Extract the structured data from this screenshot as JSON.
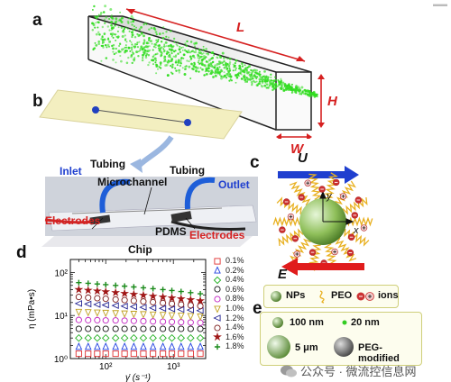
{
  "corner_mark": "▬▬",
  "panel_a": {
    "label": "a",
    "dim_L": "L",
    "dim_H": "H",
    "dim_W": "W"
  },
  "panel_b": {
    "label": "b",
    "tubing_left": "Tubing",
    "tubing_right": "Tubing",
    "inlet": "Inlet",
    "outlet": "Outlet",
    "microchannel": "Microchannel",
    "electrodes_left": "Electrodes",
    "electrodes_right": "Electrodes",
    "pdms": "PDMS",
    "chip": "Chip"
  },
  "panel_c": {
    "label": "c",
    "U": "U",
    "E": "E",
    "x": "x",
    "y": "y",
    "legend": {
      "nps": "NPs",
      "peo": "PEO",
      "ions": "ions"
    }
  },
  "panel_e": {
    "label": "e",
    "size_100": "100 nm",
    "size_20": "20 nm",
    "size_5": "5 μm",
    "peg": "PEG-modified"
  },
  "panel_d": {
    "label": "d"
  },
  "chart_data": {
    "type": "scatter",
    "title": "",
    "xlabel": "γ̇ (s⁻¹)",
    "ylabel": "η (mPa•s)",
    "xscale": "log",
    "yscale": "log",
    "xlim": [
      30,
      3000
    ],
    "ylim": [
      1,
      200
    ],
    "x_ticks": [
      100,
      1000
    ],
    "x_tick_labels": [
      "10²",
      "10³"
    ],
    "y_ticks": [
      1,
      10,
      100
    ],
    "y_tick_labels": [
      "10⁰",
      "10¹",
      "10²"
    ],
    "x": [
      40,
      55,
      75,
      100,
      140,
      190,
      260,
      360,
      500,
      700,
      950,
      1300,
      1800,
      2500
    ],
    "legend_position": "right",
    "series": [
      {
        "name": "0.1%",
        "marker": "square",
        "color": "#e03030",
        "values": [
          1.3,
          1.3,
          1.3,
          1.3,
          1.3,
          1.3,
          1.3,
          1.3,
          1.3,
          1.3,
          1.3,
          1.3,
          1.3,
          1.3
        ]
      },
      {
        "name": "0.2%",
        "marker": "triangle-up",
        "color": "#2040e0",
        "values": [
          1.9,
          1.9,
          1.9,
          1.9,
          1.9,
          1.9,
          1.9,
          1.9,
          1.9,
          1.9,
          1.9,
          1.9,
          1.9,
          1.9
        ]
      },
      {
        "name": "0.4%",
        "marker": "diamond",
        "color": "#20b020",
        "values": [
          3.0,
          3.0,
          3.0,
          3.0,
          3.0,
          3.0,
          3.0,
          3.0,
          3.0,
          3.0,
          3.0,
          3.0,
          3.0,
          3.0
        ]
      },
      {
        "name": "0.6%",
        "marker": "circle",
        "color": "#111111",
        "values": [
          4.9,
          4.9,
          4.9,
          4.9,
          4.9,
          4.9,
          4.9,
          4.9,
          4.9,
          4.9,
          4.9,
          4.9,
          4.9,
          4.9
        ]
      },
      {
        "name": "0.8%",
        "marker": "circle",
        "color": "#c020c0",
        "values": [
          7.9,
          7.8,
          7.8,
          7.7,
          7.7,
          7.6,
          7.5,
          7.4,
          7.3,
          7.2,
          7.1,
          7.0,
          6.9,
          6.8
        ]
      },
      {
        "name": "1.0%",
        "marker": "triangle-down",
        "color": "#c0a020",
        "values": [
          12,
          11.8,
          11.6,
          11.4,
          11.2,
          11,
          10.8,
          10.6,
          10.4,
          10.2,
          10,
          9.8,
          9.6,
          9.4
        ]
      },
      {
        "name": "1.2%",
        "marker": "triangle-left",
        "color": "#202090",
        "values": [
          19,
          18.5,
          18,
          17.5,
          17,
          16.5,
          16,
          15.5,
          15,
          14.6,
          14.2,
          13.8,
          13.4,
          13
        ]
      },
      {
        "name": "1.4%",
        "marker": "circle",
        "color": "#7a1a1a",
        "values": [
          27,
          26,
          25.2,
          24.4,
          23.6,
          22.8,
          22,
          21.2,
          20.4,
          19.6,
          18.8,
          18,
          17.3,
          16.6
        ]
      },
      {
        "name": "1.6%",
        "marker": "star",
        "color": "#a01818",
        "values": [
          40,
          38.5,
          37,
          35.5,
          34,
          32.5,
          31,
          29.5,
          28,
          26.8,
          25.6,
          24.4,
          23.2,
          22
        ]
      },
      {
        "name": "1.8%",
        "marker": "plus",
        "color": "#1a8a1a",
        "values": [
          58,
          56,
          54,
          52,
          50,
          48,
          46,
          44,
          42,
          40,
          38,
          36,
          34,
          32
        ]
      }
    ]
  },
  "watermark": "公众号 · 微流控信息网"
}
